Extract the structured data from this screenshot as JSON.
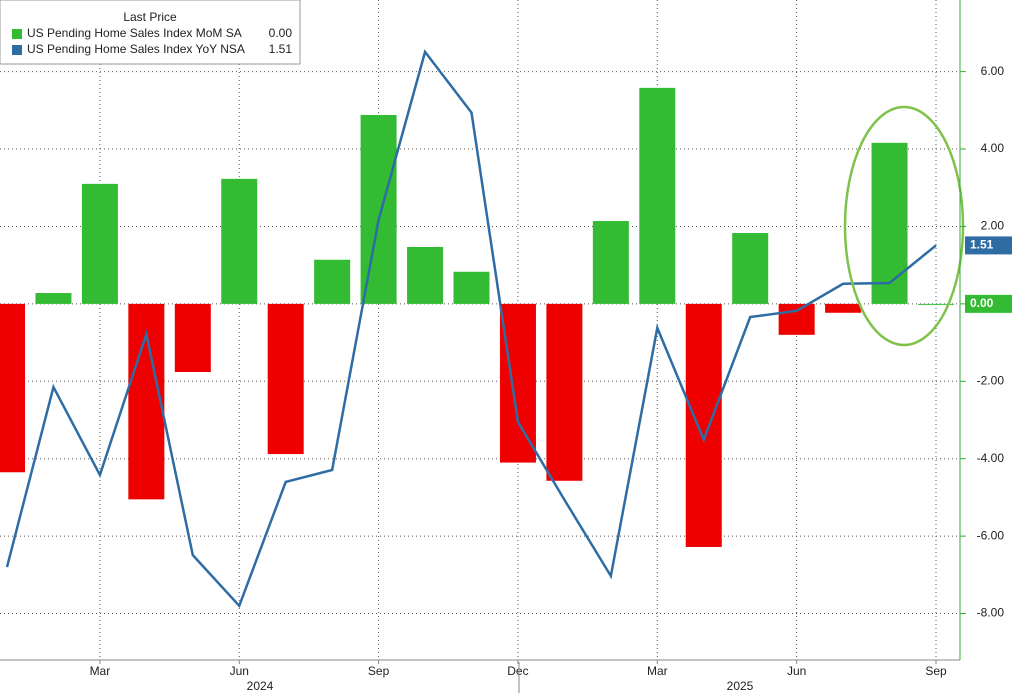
{
  "chart_data": {
    "type": "bar_line",
    "legend_title": "Last Price",
    "categories": [
      null,
      null,
      "Mar",
      null,
      null,
      "Jun",
      null,
      null,
      "Sep",
      null,
      null,
      "Dec",
      null,
      null,
      "Mar",
      null,
      null,
      "Jun",
      null,
      null,
      "Sep"
    ],
    "years": [
      "2024",
      "2025"
    ],
    "series": [
      {
        "name": "US Pending Home Sales Index MoM SA",
        "type": "bar",
        "color": "#33bb33",
        "negative_color": "#ee0000",
        "last_price_label": "0.00",
        "values": [
          -4.35,
          0.28,
          3.1,
          -5.05,
          -1.76,
          3.23,
          -3.88,
          1.14,
          4.88,
          1.47,
          0.83,
          -4.1,
          -4.57,
          2.14,
          5.58,
          -6.28,
          1.83,
          -0.8,
          -0.23,
          4.16,
          0.0
        ]
      },
      {
        "name": "US Pending Home Sales Index YoY NSA",
        "type": "line",
        "color": "#2e6ca4",
        "last_price_label": "1.51",
        "values": [
          -6.8,
          -2.15,
          -4.42,
          -0.78,
          -6.49,
          -7.8,
          -4.6,
          -4.29,
          2.17,
          6.51,
          4.94,
          -3.05,
          -5.06,
          -7.03,
          -0.62,
          -3.51,
          -0.34,
          -0.18,
          0.52,
          0.54,
          1.51
        ]
      }
    ],
    "ylim": [
      -9.2,
      7.85
    ],
    "yticks": [
      {
        "value": -8,
        "label": "-8.00"
      },
      {
        "value": -6,
        "label": "-6.00"
      },
      {
        "value": -4,
        "label": "-4.00"
      },
      {
        "value": -2,
        "label": "-2.00"
      },
      {
        "value": 0,
        "label": "0.00"
      },
      {
        "value": 2,
        "label": "2.00"
      },
      {
        "value": 4,
        "label": "4.00"
      },
      {
        "value": 6,
        "label": "6.00"
      }
    ],
    "grid": true
  }
}
